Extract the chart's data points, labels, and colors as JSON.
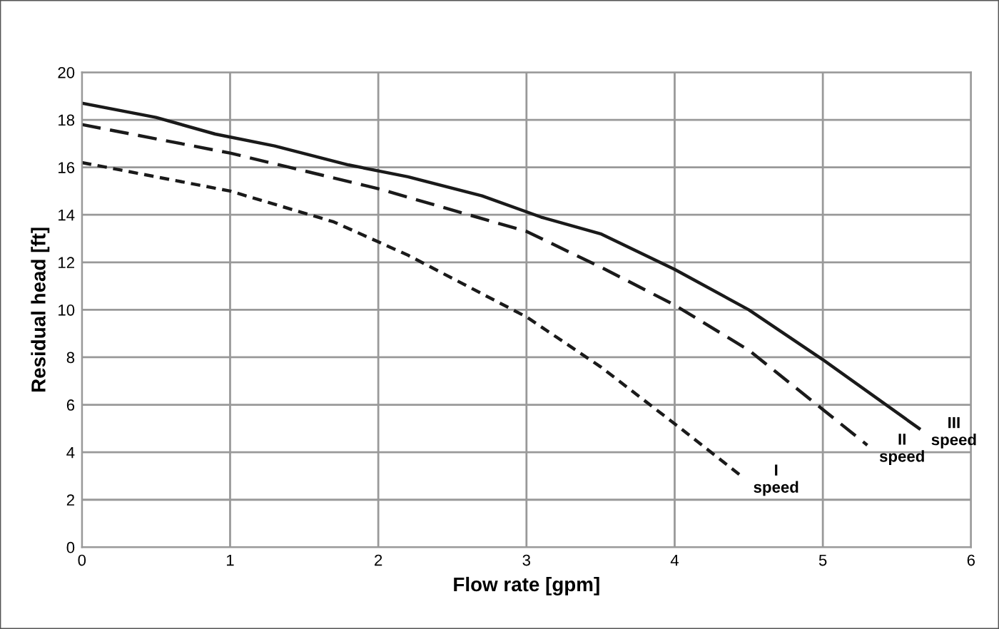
{
  "chart_data": {
    "type": "line",
    "xlabel": "Flow rate [gpm]",
    "ylabel": "Residual head [ft]",
    "xlim": [
      0,
      6
    ],
    "xticks": [
      0,
      1,
      2,
      3,
      4,
      5,
      6
    ],
    "ylim": [
      0,
      20
    ],
    "yticks": [
      0,
      2,
      4,
      6,
      8,
      10,
      12,
      14,
      16,
      18,
      20
    ],
    "grid": true,
    "legend": false,
    "series": [
      {
        "name": "III speed",
        "color": "#1a1a1a",
        "line_style": "solid",
        "x": [
          0,
          0.5,
          0.9,
          1.3,
          1.8,
          2.2,
          2.7,
          3.1,
          3.5,
          4,
          4.5,
          5,
          5.65
        ],
        "values": [
          18.7,
          18.1,
          17.4,
          16.9,
          16.1,
          15.6,
          14.8,
          13.9,
          13.2,
          11.7,
          10,
          7.9,
          5
        ]
      },
      {
        "name": "II speed",
        "color": "#1a1a1a",
        "line_style": "dashed",
        "x": [
          0,
          1,
          2,
          3,
          3.5,
          4,
          4.5,
          5,
          5.3
        ],
        "values": [
          17.8,
          16.6,
          15.1,
          13.3,
          11.8,
          10.2,
          8.3,
          5.8,
          4.3
        ]
      },
      {
        "name": "I speed",
        "color": "#1a1a1a",
        "line_style": "dotted",
        "x": [
          0,
          0.5,
          1,
          1.7,
          2.2,
          2.6,
          3,
          3.5,
          4,
          4.45
        ],
        "values": [
          16.2,
          15.6,
          15,
          13.7,
          12.3,
          11,
          9.7,
          7.6,
          5.2,
          3
        ]
      }
    ]
  }
}
